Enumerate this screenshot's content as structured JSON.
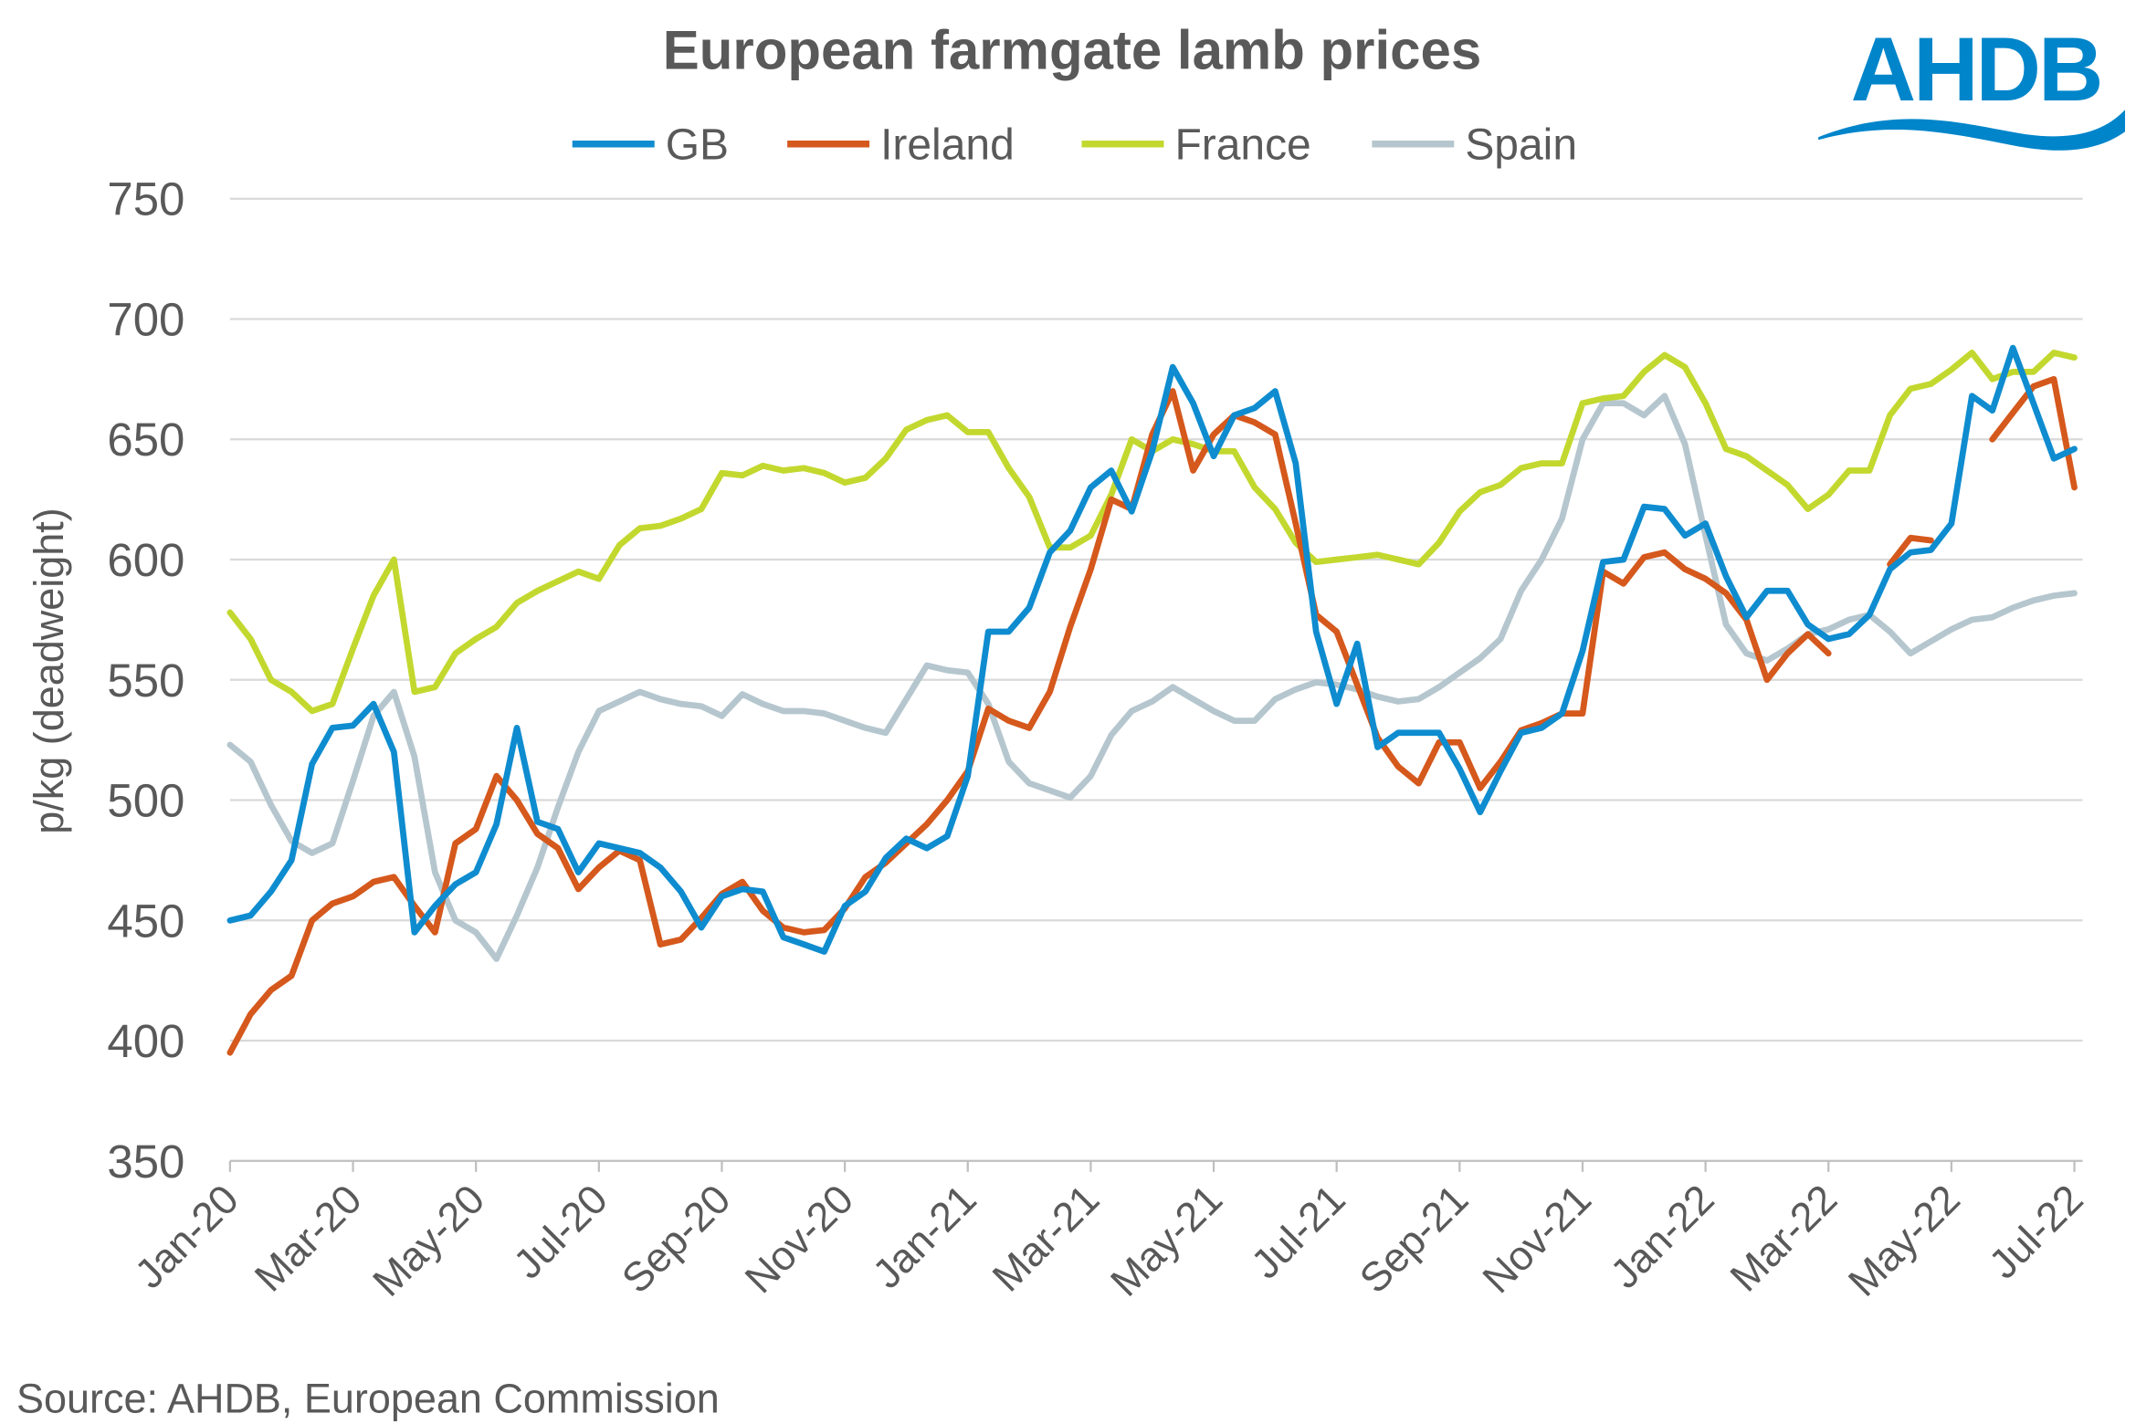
{
  "logo": {
    "text": "AHDB",
    "color": "#0085CA"
  },
  "source": "Source: AHDB, European Commission",
  "chart_data": {
    "type": "line",
    "title": "European farmgate lamb prices",
    "xlabel": "",
    "ylabel": "p/kg (deadweight)",
    "ylim": [
      350,
      750
    ],
    "yticks": [
      350,
      400,
      450,
      500,
      550,
      600,
      650,
      700,
      750
    ],
    "xlim": [
      "2020-01-01",
      "2022-07-01"
    ],
    "xtick_labels": [
      "Jan-20",
      "Mar-20",
      "May-20",
      "Jul-20",
      "Sep-20",
      "Nov-20",
      "Jan-21",
      "Mar-21",
      "May-21",
      "Jul-21",
      "Sep-21",
      "Nov-21",
      "Jan-22",
      "Mar-22",
      "May-22",
      "Jul-22"
    ],
    "xtick_dates": [
      "2020-01-01",
      "2020-03-01",
      "2020-05-01",
      "2020-07-01",
      "2020-09-01",
      "2020-11-01",
      "2021-01-01",
      "2021-03-01",
      "2021-05-01",
      "2021-07-01",
      "2021-09-01",
      "2021-11-01",
      "2022-01-01",
      "2022-03-01",
      "2022-05-01",
      "2022-07-01"
    ],
    "grid": "horizontal",
    "legend_position": "top",
    "x": [
      "2020-01-01",
      "2020-01-11",
      "2020-01-21",
      "2020-02-01",
      "2020-02-11",
      "2020-02-21",
      "2020-03-01",
      "2020-03-11",
      "2020-03-21",
      "2020-04-01",
      "2020-04-11",
      "2020-04-21",
      "2020-05-01",
      "2020-05-11",
      "2020-05-21",
      "2020-06-01",
      "2020-06-11",
      "2020-06-21",
      "2020-07-01",
      "2020-07-11",
      "2020-07-21",
      "2020-08-01",
      "2020-08-11",
      "2020-08-21",
      "2020-09-01",
      "2020-09-11",
      "2020-09-21",
      "2020-10-01",
      "2020-10-11",
      "2020-10-21",
      "2020-11-01",
      "2020-11-11",
      "2020-11-21",
      "2020-12-01",
      "2020-12-11",
      "2020-12-21",
      "2021-01-01",
      "2021-01-11",
      "2021-01-21",
      "2021-02-01",
      "2021-02-11",
      "2021-02-21",
      "2021-03-01",
      "2021-03-11",
      "2021-03-21",
      "2021-04-01",
      "2021-04-11",
      "2021-04-21",
      "2021-05-01",
      "2021-05-11",
      "2021-05-21",
      "2021-06-01",
      "2021-06-11",
      "2021-06-21",
      "2021-07-01",
      "2021-07-11",
      "2021-07-21",
      "2021-08-01",
      "2021-08-11",
      "2021-08-21",
      "2021-09-01",
      "2021-09-11",
      "2021-09-21",
      "2021-10-01",
      "2021-10-11",
      "2021-10-21",
      "2021-11-01",
      "2021-11-11",
      "2021-11-21",
      "2021-12-01",
      "2021-12-11",
      "2021-12-21",
      "2022-01-01",
      "2022-01-11",
      "2022-01-21",
      "2022-02-01",
      "2022-02-11",
      "2022-02-21",
      "2022-03-01",
      "2022-03-11",
      "2022-03-21",
      "2022-04-01",
      "2022-04-11",
      "2022-04-21",
      "2022-05-01",
      "2022-05-11",
      "2022-05-21",
      "2022-06-01",
      "2022-06-11",
      "2022-06-21",
      "2022-07-01"
    ],
    "series": [
      {
        "name": "GB",
        "color": "#0E8CCF",
        "values": [
          450,
          452,
          462,
          475,
          515,
          530,
          531,
          540,
          520,
          445,
          456,
          465,
          470,
          490,
          530,
          491,
          488,
          470,
          482,
          480,
          478,
          472,
          462,
          447,
          460,
          463,
          462,
          443,
          440,
          437,
          456,
          462,
          476,
          484,
          480,
          485,
          510,
          570,
          570,
          580,
          603,
          612,
          630,
          637,
          620,
          645,
          680,
          665,
          643,
          660,
          663,
          670,
          640,
          570,
          540,
          565,
          522,
          528,
          528,
          528,
          513,
          495,
          512,
          528,
          530,
          536,
          562,
          599,
          600,
          622,
          621,
          610,
          615,
          593,
          576,
          587,
          587,
          573,
          567,
          569,
          577,
          596,
          603,
          604,
          615,
          668,
          662,
          688,
          665,
          642,
          646
        ]
      },
      {
        "name": "Ireland",
        "color": "#D5581C",
        "values": [
          395,
          411,
          421,
          427,
          450,
          457,
          460,
          466,
          468,
          456,
          445,
          482,
          488,
          510,
          500,
          486,
          480,
          463,
          472,
          479,
          475,
          440,
          442,
          451,
          461,
          466,
          454,
          447,
          445,
          446,
          455,
          468,
          474,
          482,
          490,
          500,
          512,
          538,
          533,
          530,
          545,
          572,
          596,
          625,
          621,
          652,
          670,
          637,
          652,
          660,
          657,
          652,
          615,
          577,
          570,
          548,
          526,
          514,
          507,
          524,
          524,
          505,
          516,
          529,
          532,
          536,
          536,
          595,
          590,
          601,
          603,
          596,
          592,
          586,
          575,
          550,
          561,
          569,
          561,
          null,
          null,
          598,
          609,
          608,
          null,
          null,
          650,
          661,
          672,
          675,
          630
        ]
      },
      {
        "name": "France",
        "color": "#C3D82E",
        "values": [
          578,
          567,
          550,
          545,
          537,
          540,
          563,
          585,
          600,
          545,
          547,
          561,
          567,
          572,
          582,
          587,
          591,
          595,
          592,
          606,
          613,
          614,
          617,
          621,
          636,
          635,
          639,
          637,
          638,
          636,
          632,
          634,
          642,
          654,
          658,
          660,
          653,
          653,
          638,
          626,
          605,
          605,
          610,
          627,
          650,
          645,
          650,
          648,
          645,
          645,
          630,
          621,
          607,
          599,
          600,
          601,
          602,
          600,
          598,
          607,
          620,
          628,
          631,
          638,
          640,
          640,
          665,
          667,
          668,
          678,
          685,
          680,
          665,
          646,
          643,
          637,
          631,
          621,
          627,
          637,
          637,
          660,
          671,
          673,
          679,
          686,
          675,
          678,
          678,
          686,
          684
        ]
      },
      {
        "name": "Spain",
        "color": "#B5C6CE",
        "values": [
          523,
          516,
          498,
          483,
          478,
          482,
          508,
          535,
          545,
          518,
          470,
          450,
          445,
          434,
          452,
          472,
          497,
          520,
          537,
          541,
          545,
          542,
          540,
          539,
          535,
          544,
          540,
          537,
          537,
          536,
          533,
          530,
          528,
          542,
          556,
          554,
          553,
          540,
          516,
          507,
          504,
          501,
          510,
          527,
          537,
          541,
          547,
          542,
          537,
          533,
          533,
          542,
          546,
          549,
          548,
          546,
          543,
          541,
          542,
          547,
          553,
          559,
          567,
          587,
          600,
          617,
          650,
          665,
          665,
          660,
          668,
          648,
          610,
          573,
          561,
          558,
          563,
          569,
          571,
          575,
          577,
          570,
          561,
          566,
          571,
          575,
          576,
          580,
          583,
          585,
          586
        ]
      }
    ]
  }
}
